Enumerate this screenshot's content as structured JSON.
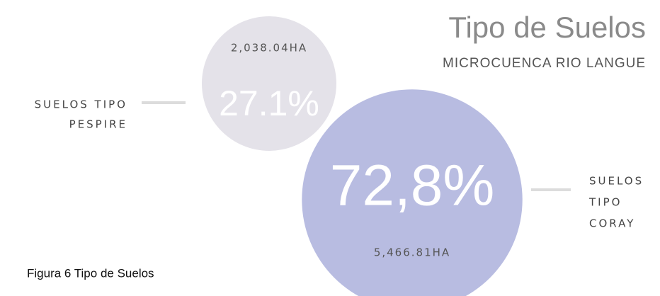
{
  "chart_data": {
    "type": "bubble",
    "title": "Tipo de Suelos",
    "subtitle": "MICROCUENCA RIO LANGUE",
    "categories": [
      [
        "SUELOS TIPO",
        "PESPIRE"
      ],
      [
        "SUELOS",
        "TIPO",
        "CORAY"
      ]
    ],
    "values": [
      27.1,
      72.8
    ],
    "value_labels": [
      "27.1%",
      "72,8%"
    ],
    "areas": [
      2038.04,
      5466.81
    ],
    "area_labels": [
      "2,038.04HA",
      "5,466.81HA"
    ],
    "colors": [
      "#e4e2e9",
      "#b4b8df"
    ],
    "caption": "Figura 6 Tipo de Suelos"
  }
}
